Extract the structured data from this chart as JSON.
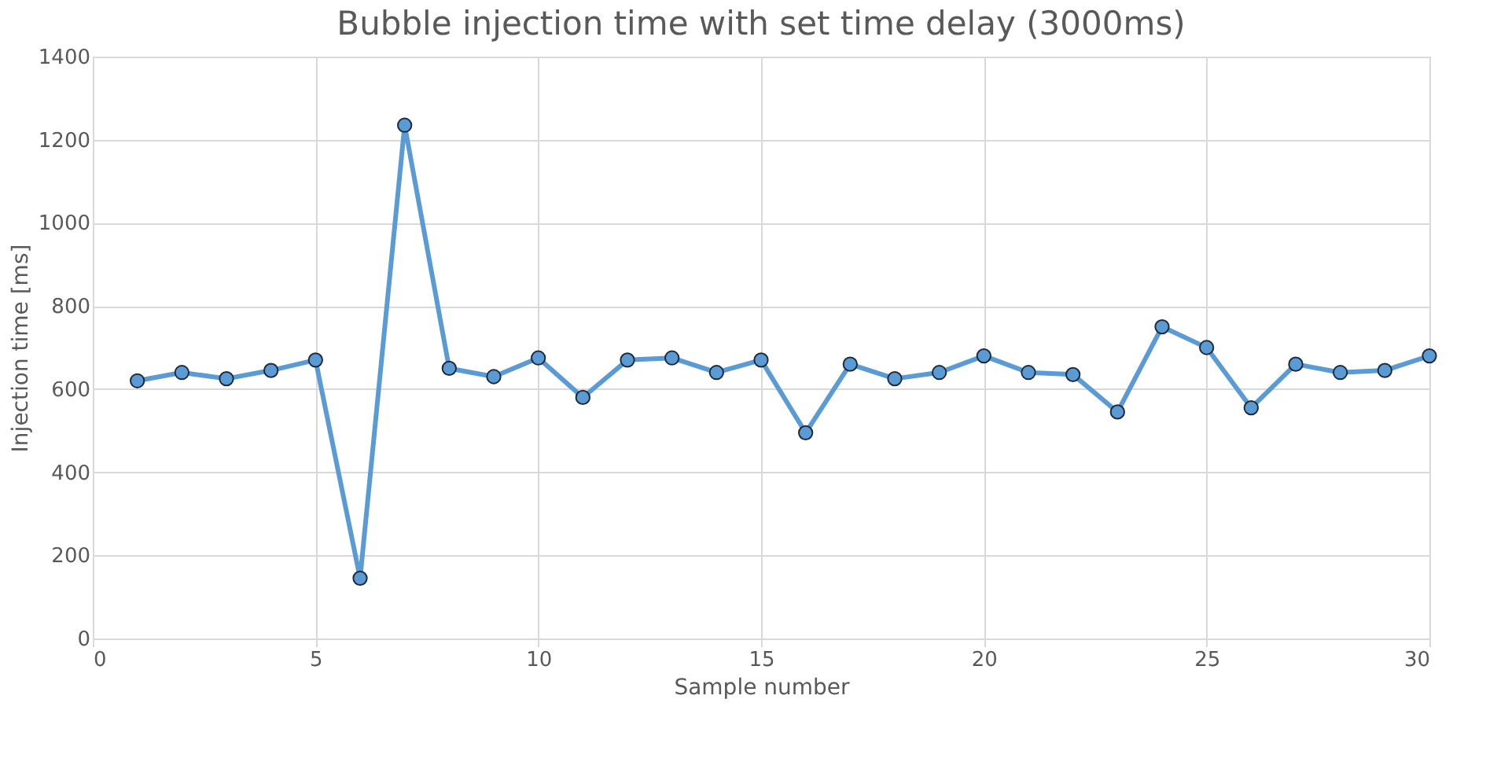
{
  "chart_data": {
    "type": "line",
    "title": "Bubble injection time with set time delay (3000ms)",
    "xlabel": "Sample number",
    "ylabel": "Injection time [ms]",
    "x": [
      1,
      2,
      3,
      4,
      5,
      6,
      7,
      8,
      9,
      10,
      11,
      12,
      13,
      14,
      15,
      16,
      17,
      18,
      19,
      20,
      21,
      22,
      23,
      24,
      25,
      26,
      27,
      28,
      29,
      30
    ],
    "series": [
      {
        "color": "#5b9bd5",
        "values": [
          620,
          640,
          625,
          645,
          670,
          145,
          1235,
          650,
          630,
          675,
          580,
          670,
          675,
          640,
          670,
          495,
          660,
          625,
          640,
          680,
          640,
          635,
          545,
          750,
          700,
          555,
          660,
          640,
          645,
          680
        ]
      }
    ],
    "xlim": [
      0,
      30
    ],
    "xticks": [
      0,
      5,
      10,
      15,
      20,
      25,
      30
    ],
    "ylim": [
      0,
      1400
    ],
    "yticks": [
      0,
      200,
      400,
      600,
      800,
      1000,
      1200,
      1400
    ],
    "grid": true,
    "marker": "circle",
    "line_style": "solid"
  }
}
